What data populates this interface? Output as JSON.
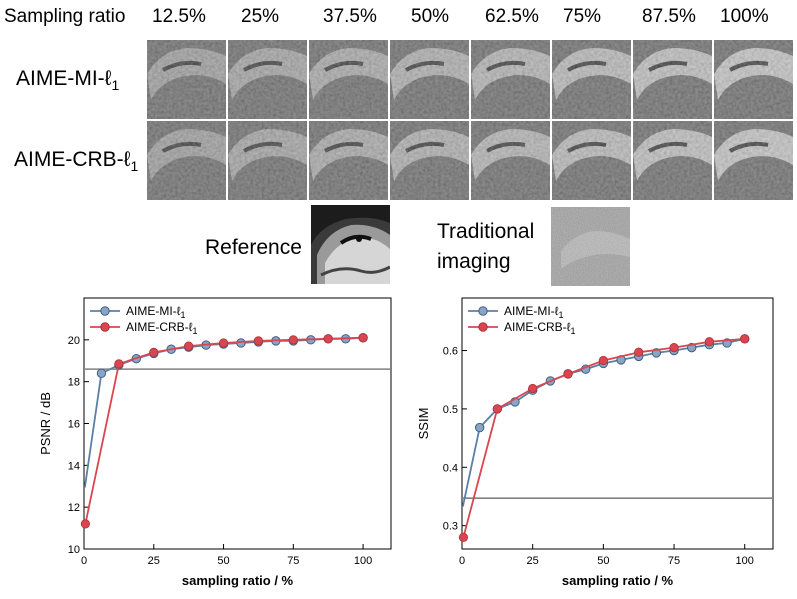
{
  "header": {
    "label": "Sampling ratio",
    "ratios": [
      "12.5%",
      "25%",
      "37.5%",
      "50%",
      "62.5%",
      "75%",
      "87.5%",
      "100%"
    ]
  },
  "rows": [
    {
      "label": "AIME-MI-ℓ",
      "sub": "1"
    },
    {
      "label": "AIME-CRB-ℓ",
      "sub": "1"
    }
  ],
  "reference": {
    "label": "Reference"
  },
  "traditional": {
    "line1": "Traditional",
    "line2": "imaging"
  },
  "colors": {
    "mi": "#5b7fa6",
    "crb": "#d9464f",
    "baseline": "#808080"
  },
  "chart_data": [
    {
      "type": "line",
      "xlabel": "sampling ratio / %",
      "ylabel": "PSNR / dB",
      "xlim": [
        0,
        110
      ],
      "ylim": [
        10,
        22
      ],
      "xticks": [
        0,
        25,
        50,
        75,
        100
      ],
      "yticks": [
        10,
        12,
        14,
        16,
        18,
        20
      ],
      "baseline": 18.6,
      "series": [
        {
          "name": "AIME-MI-ℓ",
          "sub": "1",
          "x": [
            6.25,
            12.5,
            18.75,
            25,
            31.25,
            37.5,
            43.75,
            50,
            56.25,
            62.5,
            68.75,
            75,
            81.25,
            87.5,
            93.75,
            100
          ],
          "y": [
            18.4,
            18.8,
            19.1,
            19.35,
            19.55,
            19.65,
            19.75,
            19.8,
            19.85,
            19.9,
            19.95,
            19.95,
            20.0,
            20.05,
            20.05,
            20.1
          ]
        },
        {
          "name": "AIME-CRB-ℓ",
          "sub": "1",
          "x": [
            0.5,
            12.5,
            25,
            37.5,
            50,
            62.5,
            75,
            87.5,
            100
          ],
          "y": [
            11.2,
            18.85,
            19.4,
            19.7,
            19.85,
            19.95,
            20.0,
            20.05,
            20.1
          ]
        }
      ]
    },
    {
      "type": "line",
      "xlabel": "sampling ratio / %",
      "ylabel": "SSIM",
      "xlim": [
        0,
        110
      ],
      "ylim": [
        0.26,
        0.69
      ],
      "xticks": [
        0,
        25,
        50,
        75,
        100
      ],
      "yticks": [
        0.3,
        0.4,
        0.5,
        0.6
      ],
      "baseline": 0.347,
      "series": [
        {
          "name": "AIME-MI-ℓ",
          "sub": "1",
          "x": [
            6.25,
            12.5,
            18.75,
            25,
            31.25,
            37.5,
            43.75,
            50,
            56.25,
            62.5,
            68.75,
            75,
            81.25,
            87.5,
            93.75,
            100
          ],
          "y": [
            0.468,
            0.5,
            0.512,
            0.532,
            0.548,
            0.56,
            0.568,
            0.578,
            0.584,
            0.59,
            0.596,
            0.6,
            0.605,
            0.61,
            0.613,
            0.62
          ]
        },
        {
          "name": "AIME-CRB-ℓ",
          "sub": "1",
          "x": [
            0.5,
            12.5,
            25,
            37.5,
            50,
            62.5,
            75,
            87.5,
            100
          ],
          "y": [
            0.28,
            0.5,
            0.535,
            0.56,
            0.583,
            0.597,
            0.605,
            0.615,
            0.62
          ]
        }
      ]
    }
  ]
}
